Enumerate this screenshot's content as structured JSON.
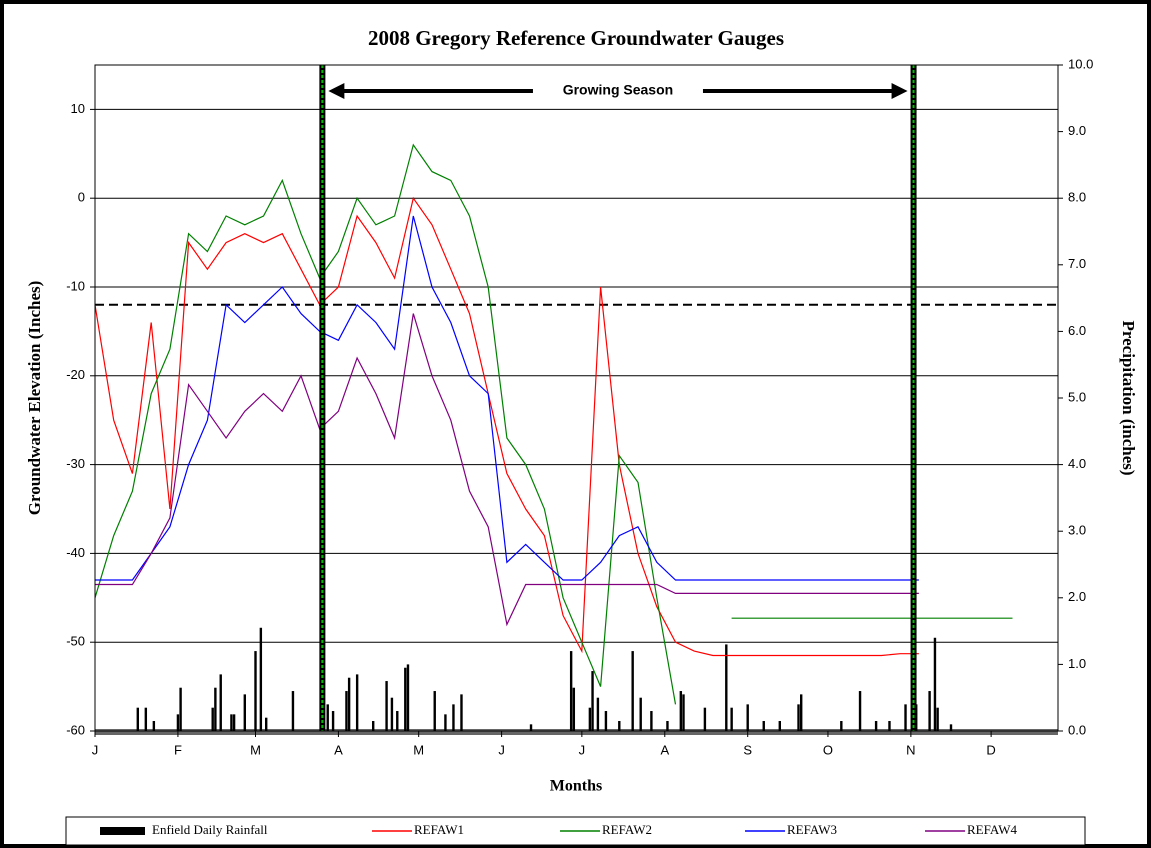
{
  "chart_data": {
    "type": "line",
    "title": "2008 Gregory Reference Groundwater Gauges",
    "x_label": "Months",
    "y_label": "Groundwater Elevation (Inches)",
    "y2_label": "Precipitation (inches)",
    "annotation": "Growing Season",
    "growing_season_bounds": [
      86,
      307
    ],
    "threshold": -12,
    "xlim": [
      1,
      361
    ],
    "xticks": [
      {
        "value": 1,
        "label": "J"
      },
      {
        "value": 32,
        "label": "F"
      },
      {
        "value": 61,
        "label": "M"
      },
      {
        "value": 92,
        "label": "A"
      },
      {
        "value": 122,
        "label": "M"
      },
      {
        "value": 153,
        "label": "J"
      },
      {
        "value": 183,
        "label": "J"
      },
      {
        "value": 214,
        "label": "A"
      },
      {
        "value": 245,
        "label": "S"
      },
      {
        "value": 275,
        "label": "O"
      },
      {
        "value": 306,
        "label": "N"
      },
      {
        "value": 336,
        "label": "D"
      }
    ],
    "ylim": [
      -60,
      15
    ],
    "yticks": [
      -60,
      -50,
      -40,
      -30,
      -20,
      -10,
      0,
      10
    ],
    "y2lim": [
      0,
      10
    ],
    "y2ticks": [
      {
        "value": 0,
        "label": "0.0"
      },
      {
        "value": 1,
        "label": "1.0"
      },
      {
        "value": 2,
        "label": "2.0"
      },
      {
        "value": 3,
        "label": "3.0"
      },
      {
        "value": 4,
        "label": "4.0"
      },
      {
        "value": 5,
        "label": "5.0"
      },
      {
        "value": 6,
        "label": "6.0"
      },
      {
        "value": 7,
        "label": "7.0"
      },
      {
        "value": 8,
        "label": "8.0"
      },
      {
        "value": 9,
        "label": "9.0"
      },
      {
        "value": 10,
        "label": "10.0"
      }
    ],
    "grid": true,
    "legend": "bottom",
    "x": [
      1,
      8,
      15,
      22,
      29,
      36,
      43,
      50,
      57,
      64,
      71,
      78,
      85,
      92,
      99,
      106,
      113,
      120,
      127,
      134,
      141,
      148,
      155,
      162,
      169,
      176,
      183,
      190,
      197,
      204,
      211,
      218,
      225,
      232,
      239,
      246,
      253,
      260,
      267,
      274,
      281,
      288,
      295,
      302,
      309,
      316,
      323,
      330,
      337,
      344,
      351,
      358
    ],
    "series": [
      {
        "name": "Enfield Daily Rainfall",
        "type": "bar",
        "axis": "y2",
        "color": "#000000",
        "x": [
          17,
          20,
          23,
          32,
          33,
          45,
          46,
          48,
          52,
          53,
          57,
          61,
          63,
          65,
          75,
          88,
          90,
          95,
          96,
          99,
          105,
          110,
          112,
          114,
          117,
          118,
          128,
          132,
          135,
          138,
          164,
          179,
          180,
          186,
          187,
          189,
          192,
          197,
          202,
          205,
          209,
          215,
          220,
          221,
          229,
          237,
          239,
          245,
          251,
          257,
          264,
          265,
          280,
          287,
          293,
          298,
          304,
          308,
          313,
          315,
          316,
          321
        ],
        "values": [
          0.35,
          0.35,
          0.15,
          0.25,
          0.65,
          0.35,
          0.65,
          0.85,
          0.25,
          0.25,
          0.55,
          1.2,
          1.55,
          0.2,
          0.6,
          0.4,
          0.3,
          0.6,
          0.8,
          0.85,
          0.15,
          0.75,
          0.5,
          0.3,
          0.95,
          1.0,
          0.6,
          0.25,
          0.4,
          0.55,
          0.1,
          1.2,
          0.65,
          0.35,
          0.9,
          0.5,
          0.3,
          0.15,
          1.2,
          0.5,
          0.3,
          0.15,
          0.6,
          0.55,
          0.35,
          1.3,
          0.35,
          0.4,
          0.15,
          0.15,
          0.4,
          0.55,
          0.15,
          0.6,
          0.15,
          0.15,
          0.4,
          0.4,
          0.6,
          1.4,
          0.35,
          0.1
        ]
      },
      {
        "name": "REFAW1",
        "color": "#ff0000",
        "values": [
          -12,
          -25,
          -31,
          -14,
          -35,
          -5,
          -8,
          -5,
          -4,
          -5,
          -4,
          -8,
          -12,
          -10,
          -2,
          -5,
          -9,
          0,
          -3,
          -8,
          -13,
          -22,
          -31,
          -35,
          -38,
          -47,
          -51,
          -10,
          -30,
          -40,
          -46,
          -50,
          -51,
          -51.5,
          -51.5,
          -51.5,
          -51.5,
          -51.5,
          -51.5,
          -51.5,
          -51.5,
          -51.5,
          -51.5,
          -51.3,
          -51.3,
          null,
          null,
          null,
          null,
          null,
          null,
          null
        ]
      },
      {
        "name": "REFAW2",
        "color": "#008000",
        "values": [
          -45,
          -38,
          -33,
          -22,
          -17,
          -4,
          -6,
          -2,
          -3,
          -2,
          2,
          -4,
          -9,
          -6,
          0,
          -3,
          -2,
          6,
          3,
          2,
          -2,
          -10,
          -27,
          -30,
          -35,
          -45,
          -50,
          -55,
          -29,
          -32,
          -45,
          -57,
          null,
          null,
          -47.3,
          -47.3,
          -47.3,
          -47.3,
          -47.3,
          -47.3,
          -47.3,
          -47.3,
          -47.3,
          -47.3,
          -47.3,
          -47.3,
          -47.3,
          -47.3,
          -47.3,
          -47.3,
          null,
          null
        ]
      },
      {
        "name": "REFAW3",
        "color": "#0000ff",
        "values": [
          -43,
          -43,
          -43,
          -40,
          -37,
          -30,
          -25,
          -12,
          -14,
          -12,
          -10,
          -13,
          -15,
          -16,
          -12,
          -14,
          -17,
          -2,
          -10,
          -14,
          -20,
          -22,
          -41,
          -39,
          -41,
          -43,
          -43,
          -41,
          -38,
          -37,
          -41,
          -43,
          -43,
          -43,
          -43,
          -43,
          -43,
          -43,
          -43,
          -43,
          -43,
          -43,
          -43,
          -43,
          -43,
          null,
          null,
          null,
          null,
          null,
          null,
          null
        ]
      },
      {
        "name": "REFAW4",
        "color": "#800080",
        "values": [
          -43.5,
          -43.5,
          -43.5,
          -40,
          -36,
          -21,
          -24,
          -27,
          -24,
          -22,
          -24,
          -20,
          -26,
          -24,
          -18,
          -22,
          -27,
          -13,
          -20,
          -25,
          -33,
          -37,
          -48,
          -43.5,
          -43.5,
          -43.5,
          -43.5,
          -43.5,
          -43.5,
          -43.5,
          -43.5,
          -44.5,
          -44.5,
          -44.5,
          -44.5,
          -44.5,
          -44.5,
          -44.5,
          -44.5,
          -44.5,
          -44.5,
          -44.5,
          -44.5,
          -44.5,
          -44.5,
          null,
          null,
          null,
          null,
          null,
          null,
          null
        ]
      }
    ]
  }
}
